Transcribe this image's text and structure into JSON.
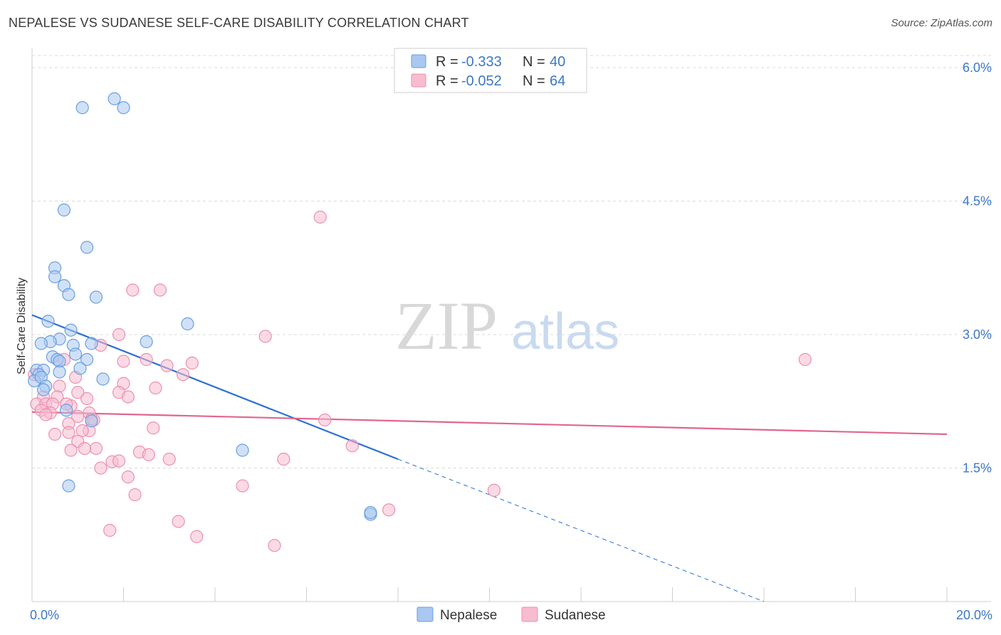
{
  "title": "NEPALESE VS SUDANESE SELF-CARE DISABILITY CORRELATION CHART",
  "source": "Source: ZipAtlas.com",
  "watermark": {
    "zip": "ZIP",
    "atlas": "atlas"
  },
  "colors": {
    "nepalese_fill": "#a9c8f0",
    "nepalese_stroke": "#6a9ee0",
    "nepalese_line": "#2a6fd6",
    "sudanese_fill": "#f7bcd0",
    "sudanese_stroke": "#ec8fae",
    "sudanese_line": "#e0668f",
    "tick_label": "#3c78c8",
    "grid": "#d9d9d9"
  },
  "legend": {
    "rows": [
      {
        "r_label": "R =",
        "r_value": "-0.333",
        "n_label": "N =",
        "n_value": "40"
      },
      {
        "r_label": "R =",
        "r_value": "-0.052",
        "n_label": "N =",
        "n_value": "64"
      }
    ]
  },
  "chart_data": {
    "type": "scatter",
    "title": "NEPALESE VS SUDANESE SELF-CARE DISABILITY CORRELATION CHART",
    "xlabel": "",
    "ylabel": "Self-Care Disability",
    "xlim": [
      0,
      20
    ],
    "ylim": [
      0,
      6.2
    ],
    "x_tick_labels": [
      "0.0%",
      "20.0%"
    ],
    "y_ticks": [
      1.5,
      3.0,
      4.5,
      6.0
    ],
    "y_tick_labels": [
      "1.5%",
      "3.0%",
      "4.5%",
      "6.0%"
    ],
    "grid": "horizontal dashed",
    "legend_position": "top-center",
    "series": [
      {
        "name": "Nepalese",
        "points": [
          [
            1.1,
            5.55
          ],
          [
            1.8,
            5.65
          ],
          [
            2.0,
            5.55
          ],
          [
            0.7,
            4.4
          ],
          [
            1.2,
            3.98
          ],
          [
            0.5,
            3.75
          ],
          [
            0.5,
            3.65
          ],
          [
            0.7,
            3.55
          ],
          [
            0.8,
            3.45
          ],
          [
            1.4,
            3.42
          ],
          [
            0.35,
            3.15
          ],
          [
            3.4,
            3.12
          ],
          [
            0.85,
            3.05
          ],
          [
            0.6,
            2.95
          ],
          [
            0.4,
            2.92
          ],
          [
            0.2,
            2.9
          ],
          [
            2.5,
            2.92
          ],
          [
            1.3,
            2.9
          ],
          [
            0.9,
            2.88
          ],
          [
            0.95,
            2.78
          ],
          [
            0.45,
            2.75
          ],
          [
            0.55,
            2.72
          ],
          [
            1.2,
            2.72
          ],
          [
            0.6,
            2.7
          ],
          [
            0.1,
            2.6
          ],
          [
            0.25,
            2.6
          ],
          [
            0.15,
            2.55
          ],
          [
            0.6,
            2.58
          ],
          [
            1.05,
            2.62
          ],
          [
            0.05,
            2.48
          ],
          [
            0.2,
            2.52
          ],
          [
            1.55,
            2.5
          ],
          [
            0.3,
            2.42
          ],
          [
            0.25,
            2.38
          ],
          [
            0.75,
            2.15
          ],
          [
            1.3,
            2.03
          ],
          [
            4.6,
            1.7
          ],
          [
            0.8,
            1.3
          ],
          [
            7.4,
            0.98
          ],
          [
            7.4,
            1.0
          ]
        ]
      },
      {
        "name": "Sudanese",
        "points": [
          [
            6.3,
            4.32
          ],
          [
            2.2,
            3.5
          ],
          [
            2.8,
            3.5
          ],
          [
            5.1,
            2.98
          ],
          [
            1.9,
            3.0
          ],
          [
            1.5,
            2.88
          ],
          [
            0.7,
            2.72
          ],
          [
            2.0,
            2.7
          ],
          [
            2.5,
            2.72
          ],
          [
            3.5,
            2.68
          ],
          [
            2.95,
            2.65
          ],
          [
            3.3,
            2.55
          ],
          [
            0.95,
            2.52
          ],
          [
            16.9,
            2.72
          ],
          [
            2.0,
            2.45
          ],
          [
            2.7,
            2.4
          ],
          [
            0.6,
            2.42
          ],
          [
            1.9,
            2.35
          ],
          [
            1.0,
            2.35
          ],
          [
            2.1,
            2.3
          ],
          [
            0.55,
            2.3
          ],
          [
            1.2,
            2.28
          ],
          [
            0.25,
            2.3
          ],
          [
            0.1,
            2.22
          ],
          [
            0.85,
            2.2
          ],
          [
            0.75,
            2.22
          ],
          [
            0.3,
            2.22
          ],
          [
            0.45,
            2.22
          ],
          [
            0.2,
            2.15
          ],
          [
            0.4,
            2.12
          ],
          [
            0.3,
            2.1
          ],
          [
            1.25,
            2.12
          ],
          [
            1.0,
            2.08
          ],
          [
            1.3,
            2.05
          ],
          [
            1.35,
            2.04
          ],
          [
            6.4,
            2.04
          ],
          [
            0.8,
            2.0
          ],
          [
            2.65,
            1.95
          ],
          [
            1.25,
            1.92
          ],
          [
            0.8,
            1.9
          ],
          [
            1.1,
            1.92
          ],
          [
            0.5,
            1.88
          ],
          [
            1.0,
            1.8
          ],
          [
            7.0,
            1.75
          ],
          [
            1.4,
            1.72
          ],
          [
            1.15,
            1.72
          ],
          [
            0.85,
            1.7
          ],
          [
            2.35,
            1.68
          ],
          [
            2.55,
            1.65
          ],
          [
            3.0,
            1.6
          ],
          [
            5.5,
            1.6
          ],
          [
            1.75,
            1.57
          ],
          [
            1.9,
            1.58
          ],
          [
            1.5,
            1.5
          ],
          [
            2.1,
            1.4
          ],
          [
            4.6,
            1.3
          ],
          [
            10.1,
            1.25
          ],
          [
            2.25,
            1.2
          ],
          [
            7.8,
            1.03
          ],
          [
            3.2,
            0.9
          ],
          [
            1.7,
            0.8
          ],
          [
            3.6,
            0.73
          ],
          [
            5.3,
            0.63
          ],
          [
            0.05,
            2.55
          ]
        ]
      }
    ],
    "trendlines": [
      {
        "series": "Nepalese",
        "x0": 0,
        "y0": 3.22,
        "x1": 8.0,
        "y1": 1.6,
        "extend_dashed_to_x": 16.0,
        "extend_dashed_to_y": 0.0
      },
      {
        "series": "Sudanese",
        "x0": 0,
        "y0": 2.13,
        "x1": 20.0,
        "y1": 1.88
      }
    ]
  }
}
